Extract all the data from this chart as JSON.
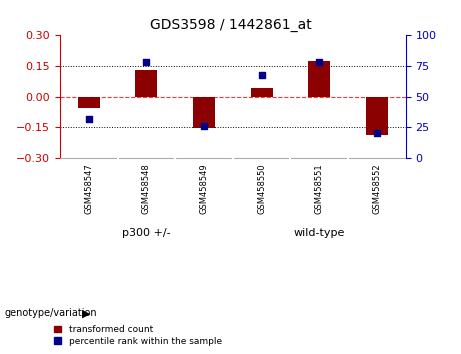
{
  "title": "GDS3598 / 1442861_at",
  "samples": [
    "GSM458547",
    "GSM458548",
    "GSM458549",
    "GSM458550",
    "GSM458551",
    "GSM458552"
  ],
  "transformed_counts": [
    -0.055,
    0.13,
    -0.155,
    0.04,
    0.175,
    -0.19
  ],
  "percentile_ranks": [
    32,
    78,
    26,
    68,
    78,
    20
  ],
  "group_boundary": 2.5,
  "group1_label": "p300 +/-",
  "group2_label": "wild-type",
  "group_color": "#90EE90",
  "sample_bg_color": "#c8c8c8",
  "bar_color": "#8B0000",
  "dot_color": "#00008B",
  "ylim_left": [
    -0.3,
    0.3
  ],
  "ylim_right": [
    0,
    100
  ],
  "yticks_left": [
    -0.3,
    -0.15,
    0.0,
    0.15,
    0.3
  ],
  "yticks_right": [
    0,
    25,
    50,
    75,
    100
  ],
  "background_color": "#ffffff",
  "plot_bg": "#ffffff",
  "left_axis_color": "#cc0000",
  "right_axis_color": "#0000cc",
  "legend_red_label": "transformed count",
  "legend_blue_label": "percentile rank within the sample",
  "genotype_label": "genotype/variation"
}
